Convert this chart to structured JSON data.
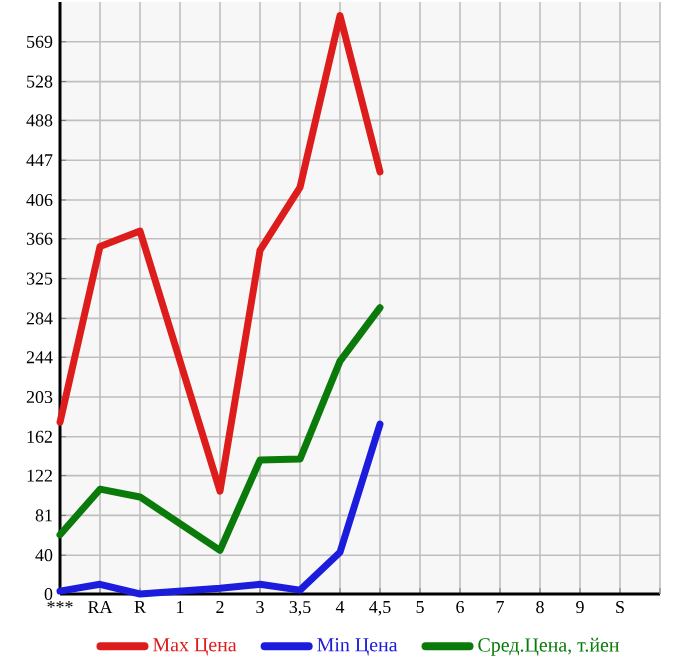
{
  "chart_data": {
    "type": "line",
    "categories": [
      "***",
      "RA",
      "R",
      "1",
      "2",
      "3",
      "3,5",
      "4",
      "4,5",
      "5",
      "6",
      "7",
      "8",
      "9",
      "S"
    ],
    "series": [
      {
        "name": "Max Цена",
        "color": "#dd1c1c",
        "values": [
          177,
          358,
          374,
          null,
          106,
          354,
          419,
          596,
          435,
          null,
          null,
          null,
          null,
          null,
          null
        ]
      },
      {
        "name": "Min Цена",
        "color": "#1c1cdd",
        "values": [
          3,
          10,
          0,
          null,
          6,
          10,
          4,
          43,
          175,
          null,
          null,
          null,
          null,
          null,
          null
        ]
      },
      {
        "name": "Сред.Цена, т.йен",
        "color": "#0a7a0a",
        "values": [
          61,
          108,
          100,
          null,
          45,
          138,
          139,
          240,
          295,
          null,
          null,
          null,
          null,
          null,
          null
        ]
      }
    ],
    "ylim": [
      0,
      610
    ],
    "yticks": [
      0,
      40,
      81,
      122,
      162,
      203,
      244,
      284,
      325,
      366,
      406,
      447,
      488,
      528,
      569
    ],
    "grid": true,
    "legend": "bottom",
    "line_style": "solid",
    "marker": "none"
  }
}
